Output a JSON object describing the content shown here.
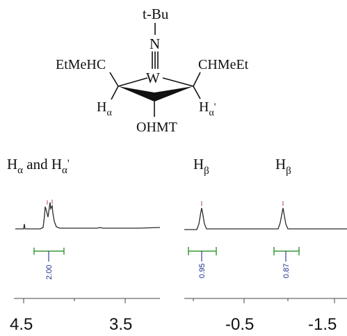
{
  "molecule": {
    "top_group": "t-Bu",
    "nitrogen": "N",
    "metal": "W",
    "left_group": "EtMeHC",
    "right_group": "CHMeEt",
    "left_h": "H",
    "left_h_sub": "α",
    "right_h": "H",
    "right_h_sub": "α",
    "right_h_prime": "'",
    "bottom_group": "OHMT"
  },
  "headings": {
    "h_alpha_left": "H",
    "h_alpha_left_sub": "α",
    "and": " and ",
    "h_alpha_right": "H",
    "h_alpha_right_sub": "α",
    "h_alpha_right_prime": "'",
    "h_beta_1": "H",
    "h_beta_1_sub": "β",
    "h_beta_2": "H",
    "h_beta_2_sub": "β"
  },
  "spectrum_left": {
    "axis_labels": [
      "4.5",
      "3.5"
    ],
    "integrals": [
      "2.00"
    ]
  },
  "spectrum_right": {
    "axis_labels": [
      "-0.5",
      "-1.5"
    ],
    "integrals": [
      "0.95",
      "0.87"
    ]
  },
  "colors": {
    "trace": "#2a2a2a",
    "integral": "#3a9a3a",
    "integral_value": "#1d2f8a",
    "peak_marker": "#c07080"
  }
}
